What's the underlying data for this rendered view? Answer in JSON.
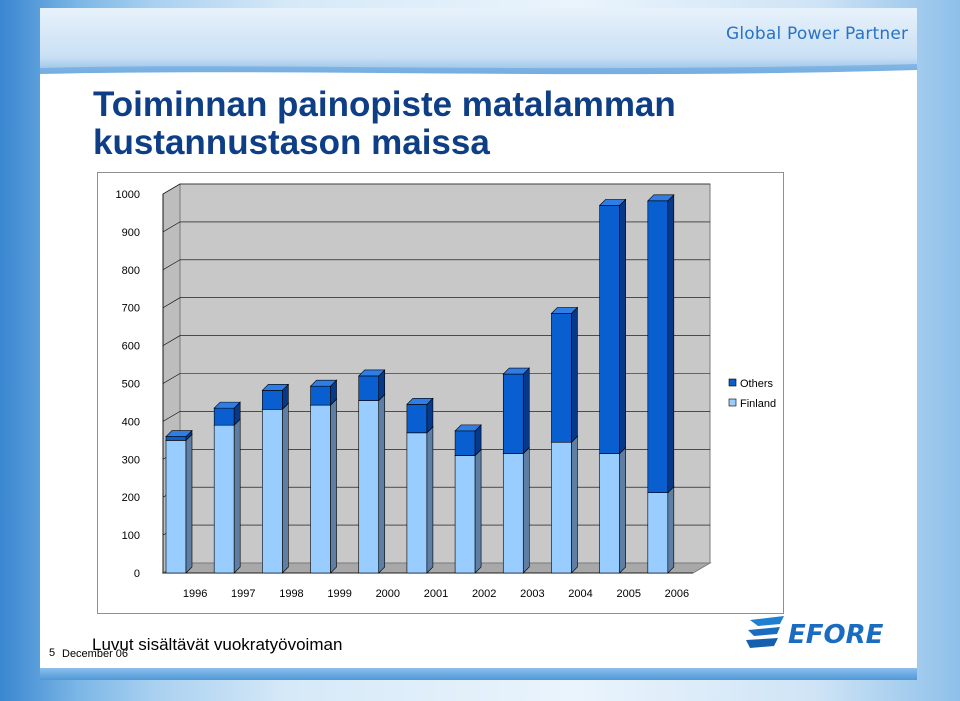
{
  "header": {
    "brand": "Global Power Partner",
    "title_line1": "Toiminnan painopiste matalamman",
    "title_line2": "kustannustason maissa"
  },
  "footer": {
    "slide_number": "5",
    "date": "December 06",
    "note": "Luvut sisältävät vuokratyövoiman",
    "logo_text": "EFORE"
  },
  "colors": {
    "finland": "#99ccff",
    "others": "#0a5fd0",
    "title": "#0d3e86",
    "brand": "#2a72c4"
  },
  "chart_data": {
    "type": "bar",
    "stacked": true,
    "style": "3d",
    "categories": [
      "1996",
      "1997",
      "1998",
      "1999",
      "2000",
      "2001",
      "2002",
      "2003",
      "2004",
      "2005",
      "2006"
    ],
    "series": [
      {
        "name": "Finland",
        "values": [
          350,
          390,
          432,
          443,
          455,
          370,
          310,
          315,
          345,
          315,
          212
        ]
      },
      {
        "name": "Others",
        "values": [
          10,
          45,
          50,
          50,
          65,
          75,
          65,
          210,
          340,
          655,
          770
        ]
      }
    ],
    "ylim": [
      0,
      1000
    ],
    "yticks": [
      "0",
      "100",
      "200",
      "300",
      "400",
      "500",
      "600",
      "700",
      "800",
      "900",
      "1000"
    ],
    "grid": true,
    "legend_position": "right",
    "legend_order": [
      "Others",
      "Finland"
    ]
  }
}
